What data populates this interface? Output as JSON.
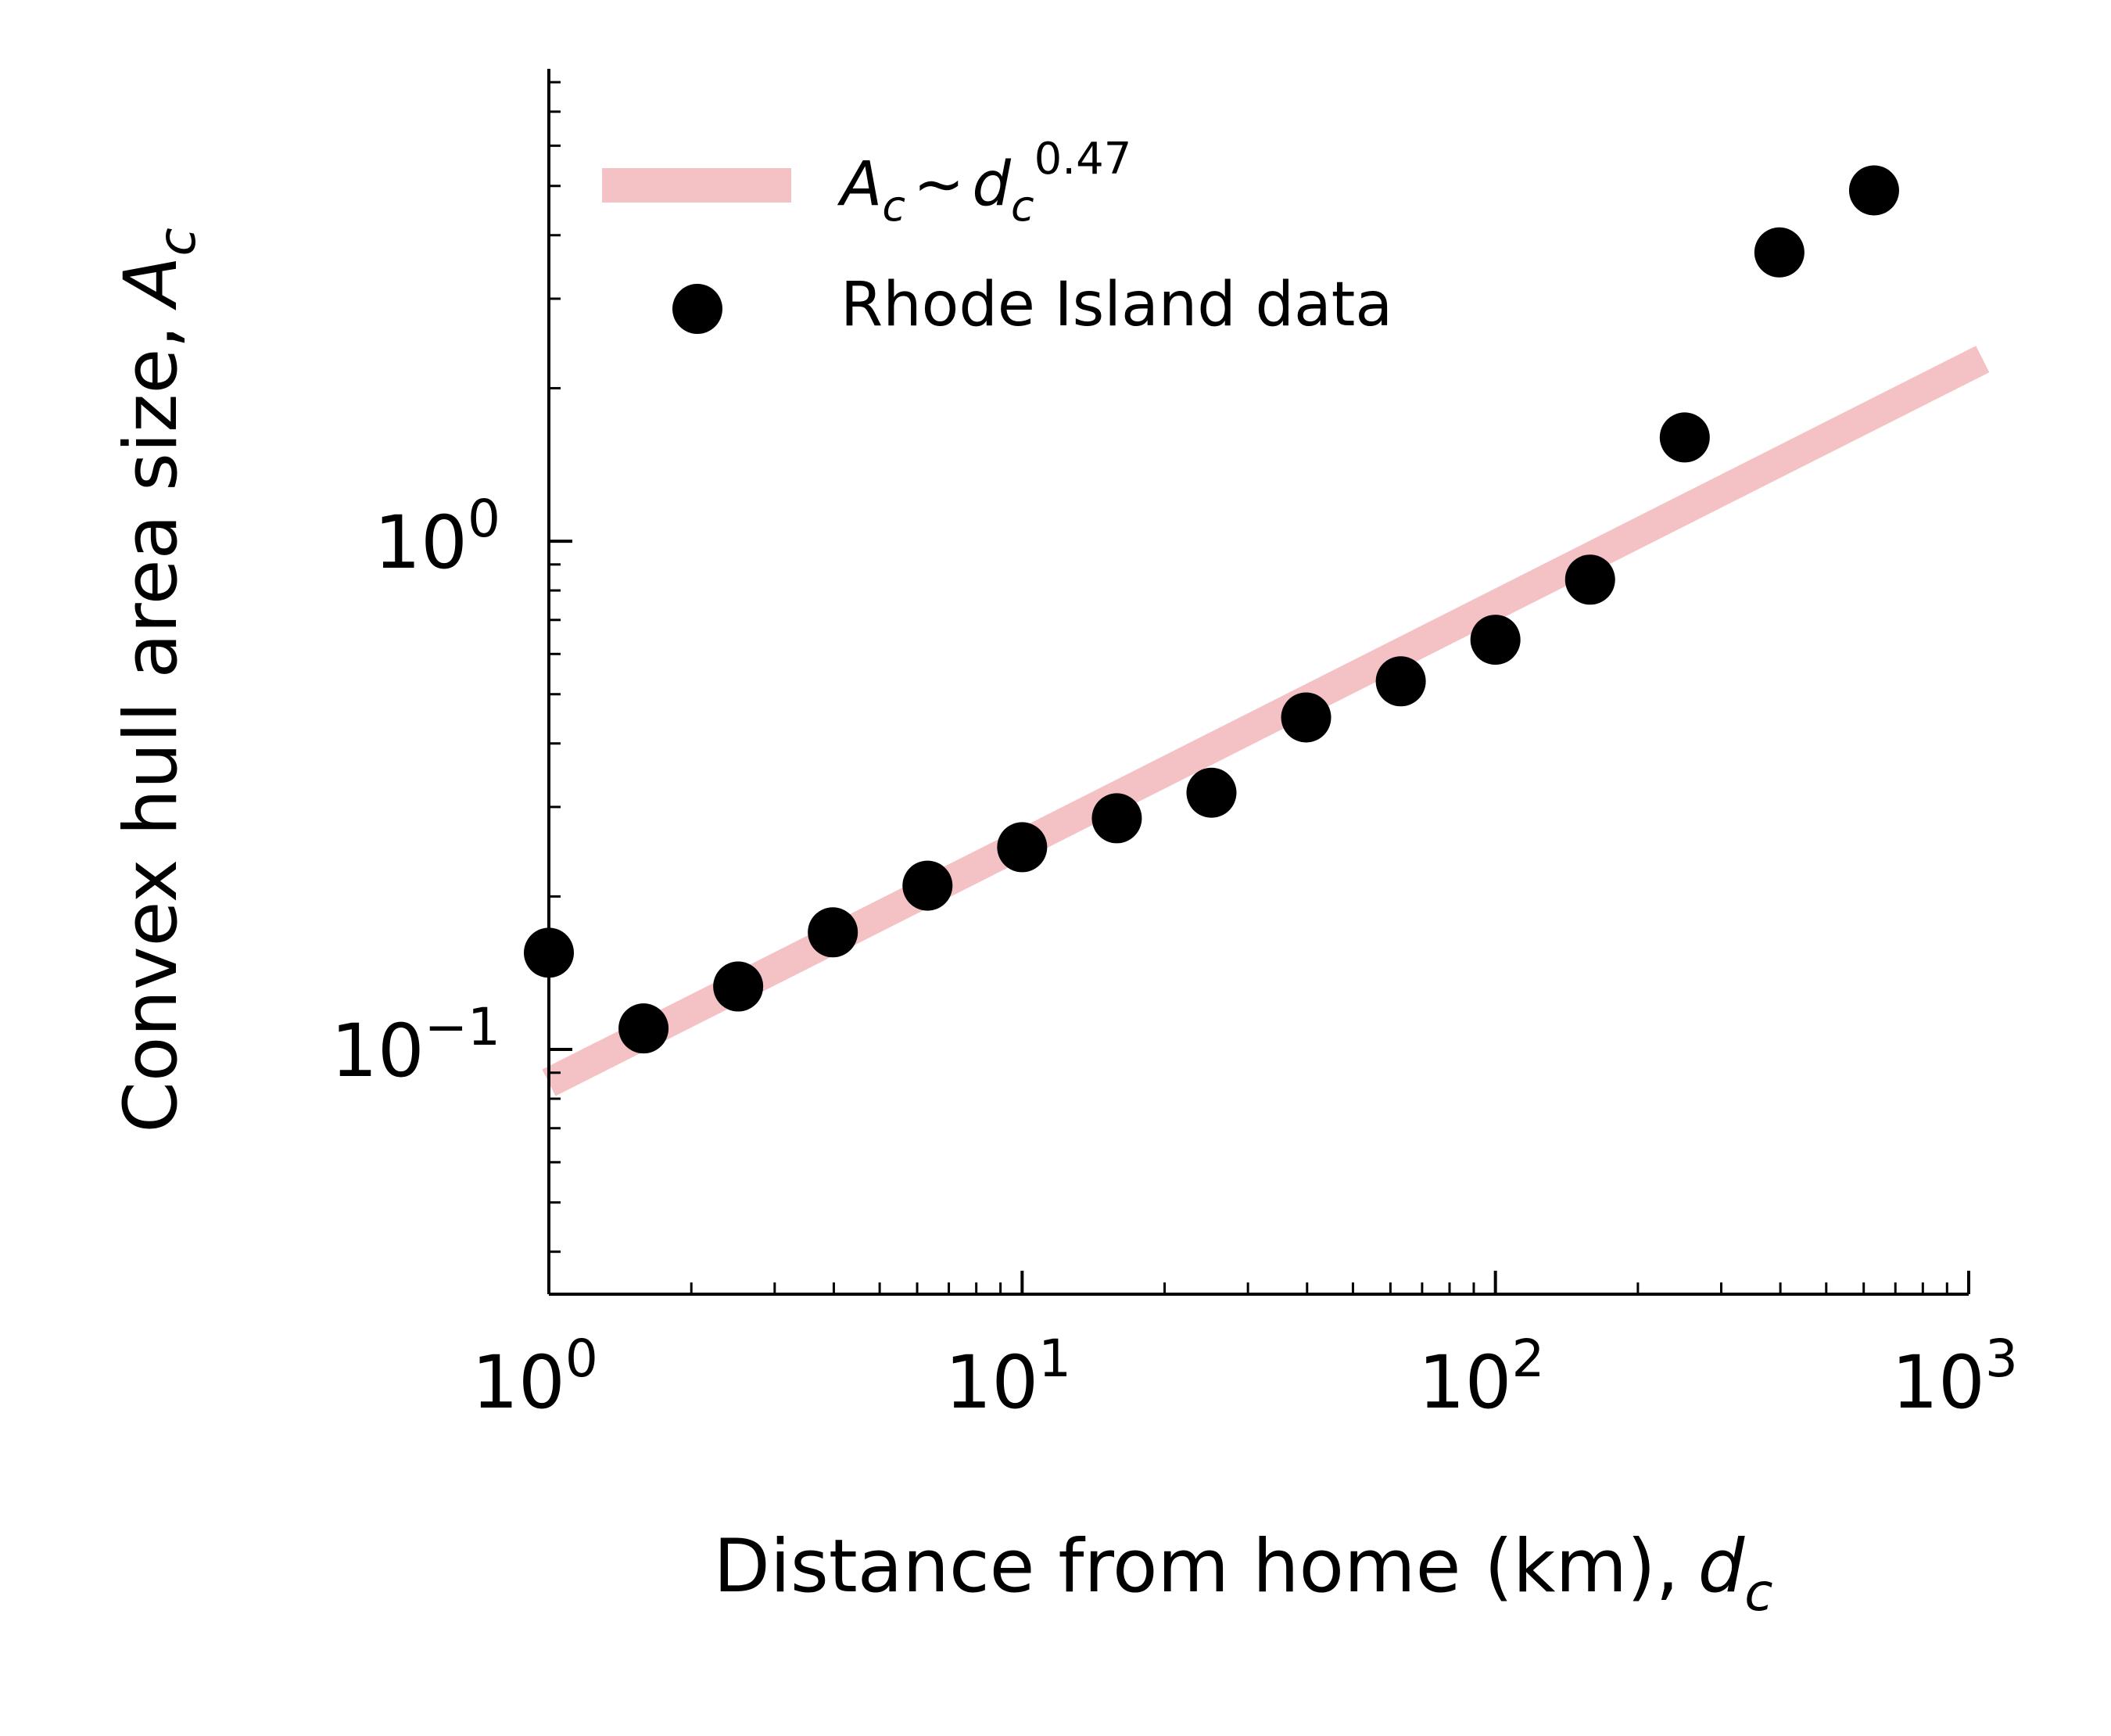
{
  "chart_data": {
    "type": "scatter",
    "xlabel": "Distance from home (km),",
    "xlabel_var": "d",
    "xlabel_sub": "c",
    "ylabel": "Convex hull area size,",
    "ylabel_var": "A",
    "ylabel_sub": "c",
    "x_scale": "log",
    "y_scale": "log",
    "xlim": [
      1,
      1000
    ],
    "ylim": [
      0.033,
      8.5
    ],
    "x_ticks": [
      {
        "value": 1,
        "base": "10",
        "exp": "0"
      },
      {
        "value": 10,
        "base": "10",
        "exp": "1"
      },
      {
        "value": 100,
        "base": "10",
        "exp": "2"
      },
      {
        "value": 1000,
        "base": "10",
        "exp": "3"
      }
    ],
    "y_ticks": [
      {
        "value": 0.1,
        "base": "10",
        "exp": "−1"
      },
      {
        "value": 1,
        "base": "10",
        "exp": "0"
      }
    ],
    "grid": false,
    "legend_position": "top-left",
    "fit_color": "#f4c2c4",
    "point_color": "#000000",
    "series": [
      {
        "name": "Rhode Island data",
        "kind": "scatter",
        "x": [
          1,
          1.585,
          2.512,
          3.981,
          6.31,
          10,
          15.85,
          25.12,
          39.81,
          63.1,
          100,
          158.5,
          251.2,
          398.1,
          631
        ],
        "y": [
          0.155,
          0.11,
          0.133,
          0.17,
          0.21,
          0.25,
          0.285,
          0.32,
          0.45,
          0.53,
          0.64,
          0.84,
          1.6,
          3.7,
          4.9
        ]
      }
    ],
    "fit": {
      "label_var": "A",
      "label_sub": "c",
      "label_tilde": "∼",
      "label_var2": "d",
      "label_sub2": "c",
      "label_exp": "0.47",
      "exponent": 0.47,
      "prefactor": 0.086
    }
  }
}
